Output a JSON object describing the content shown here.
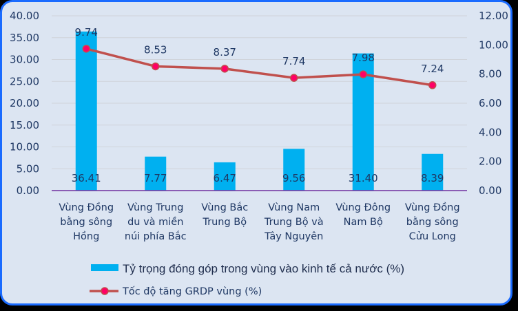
{
  "chart_data": {
    "type": "bar+line",
    "categories": [
      [
        "Vùng Đồng",
        "bằng sông",
        "Hồng"
      ],
      [
        "Vùng Trung",
        "du và miền",
        "núi phía Bắc"
      ],
      [
        "Vùng Bắc",
        "Trung Bộ"
      ],
      [
        "Vùng Nam",
        "Trung Bộ và",
        "Tây Nguyên"
      ],
      [
        "Vùng Đông",
        "Nam Bộ"
      ],
      [
        "Vùng Đồng",
        "bằng sông",
        "Cửu Long"
      ]
    ],
    "series": [
      {
        "name": "Tỷ trọng đóng góp trong vùng vào kinh tế cả nước (%)",
        "type": "bar",
        "axis": "left",
        "color": "#00b0f0",
        "values": [
          36.41,
          7.77,
          6.47,
          9.56,
          31.4,
          8.39
        ],
        "labels": [
          "36.41",
          "7.77",
          "6.47",
          "9.56",
          "31.40",
          "8.39"
        ]
      },
      {
        "name": "Tốc độ tăng GRDP vùng (%)",
        "type": "line",
        "axis": "right",
        "color": "#c0504d",
        "marker_color": "#ff0066",
        "values": [
          9.74,
          8.53,
          8.37,
          7.74,
          7.98,
          7.24
        ],
        "labels": [
          "9.74",
          "8.53",
          "8.37",
          "7.74",
          "7.98",
          "7.24"
        ]
      }
    ],
    "left_axis": {
      "ylim": [
        0,
        40
      ],
      "ticks": [
        "0.00",
        "5.00",
        "10.00",
        "15.00",
        "20.00",
        "25.00",
        "30.00",
        "35.00",
        "40.00"
      ]
    },
    "right_axis": {
      "ylim": [
        0,
        12
      ],
      "ticks": [
        "0.00",
        "2.00",
        "4.00",
        "6.00",
        "8.00",
        "10.00",
        "12.00"
      ]
    },
    "grid": true,
    "legend_position": "bottom"
  },
  "legend": {
    "bar_label": "Tỷ trọng đóng góp trong vùng vào kinh tế cả nước (%)",
    "line_label": "Tốc độ tăng GRDP vùng (%)"
  }
}
